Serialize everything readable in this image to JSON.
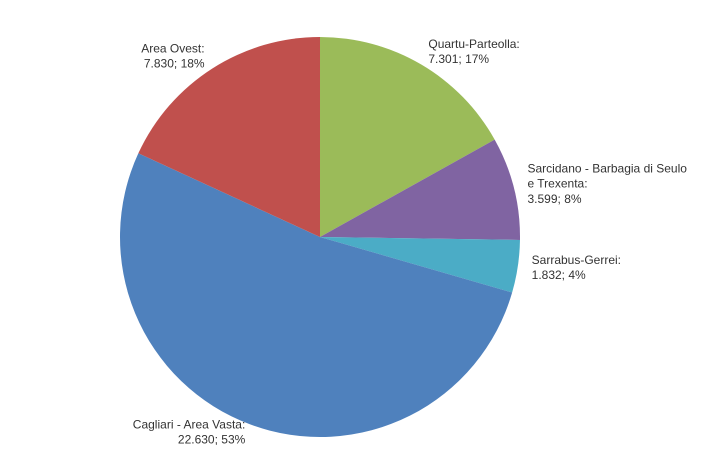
{
  "chart_data": {
    "type": "pie",
    "categories": [
      "Quartu-Parteolla:",
      "Sarcidano - Barbagia di Seulo e Trexenta:",
      "Sarrabus-Gerrei:",
      "Cagliari - Area Vasta:",
      "Area Ovest:"
    ],
    "values": [
      7301,
      3599,
      1832,
      22630,
      7830
    ],
    "value_labels": [
      "7.301; 17%",
      "3.599; 8%",
      "1.832; 4%",
      "22.630; 53%",
      "7.830; 18%"
    ],
    "colors": [
      "#9bbb59",
      "#8064a2",
      "#4bacc6",
      "#4f81bd",
      "#c0504d"
    ]
  }
}
